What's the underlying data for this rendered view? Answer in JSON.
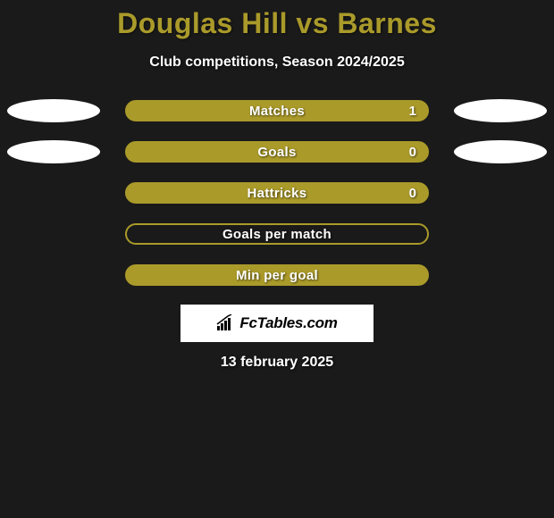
{
  "header": {
    "title": "Douglas Hill vs Barnes",
    "subtitle": "Club competitions, Season 2024/2025",
    "title_color": "#aa9a2a"
  },
  "stats": [
    {
      "label": "Matches",
      "value": "1",
      "filled": true,
      "show_left_ellipse": true,
      "show_right_ellipse": true
    },
    {
      "label": "Goals",
      "value": "0",
      "filled": true,
      "show_left_ellipse": true,
      "show_right_ellipse": true
    },
    {
      "label": "Hattricks",
      "value": "0",
      "filled": true,
      "show_left_ellipse": false,
      "show_right_ellipse": false
    },
    {
      "label": "Goals per match",
      "value": "",
      "filled": false,
      "show_left_ellipse": false,
      "show_right_ellipse": false
    },
    {
      "label": "Min per goal",
      "value": "",
      "filled": true,
      "show_left_ellipse": false,
      "show_right_ellipse": false
    }
  ],
  "branding": {
    "logo_text": "FcTables.com"
  },
  "footer": {
    "date": "13 february 2025"
  },
  "colors": {
    "accent": "#aa9a2a",
    "background": "#1a1a1a",
    "text": "#ffffff",
    "ellipse": "#ffffff"
  }
}
